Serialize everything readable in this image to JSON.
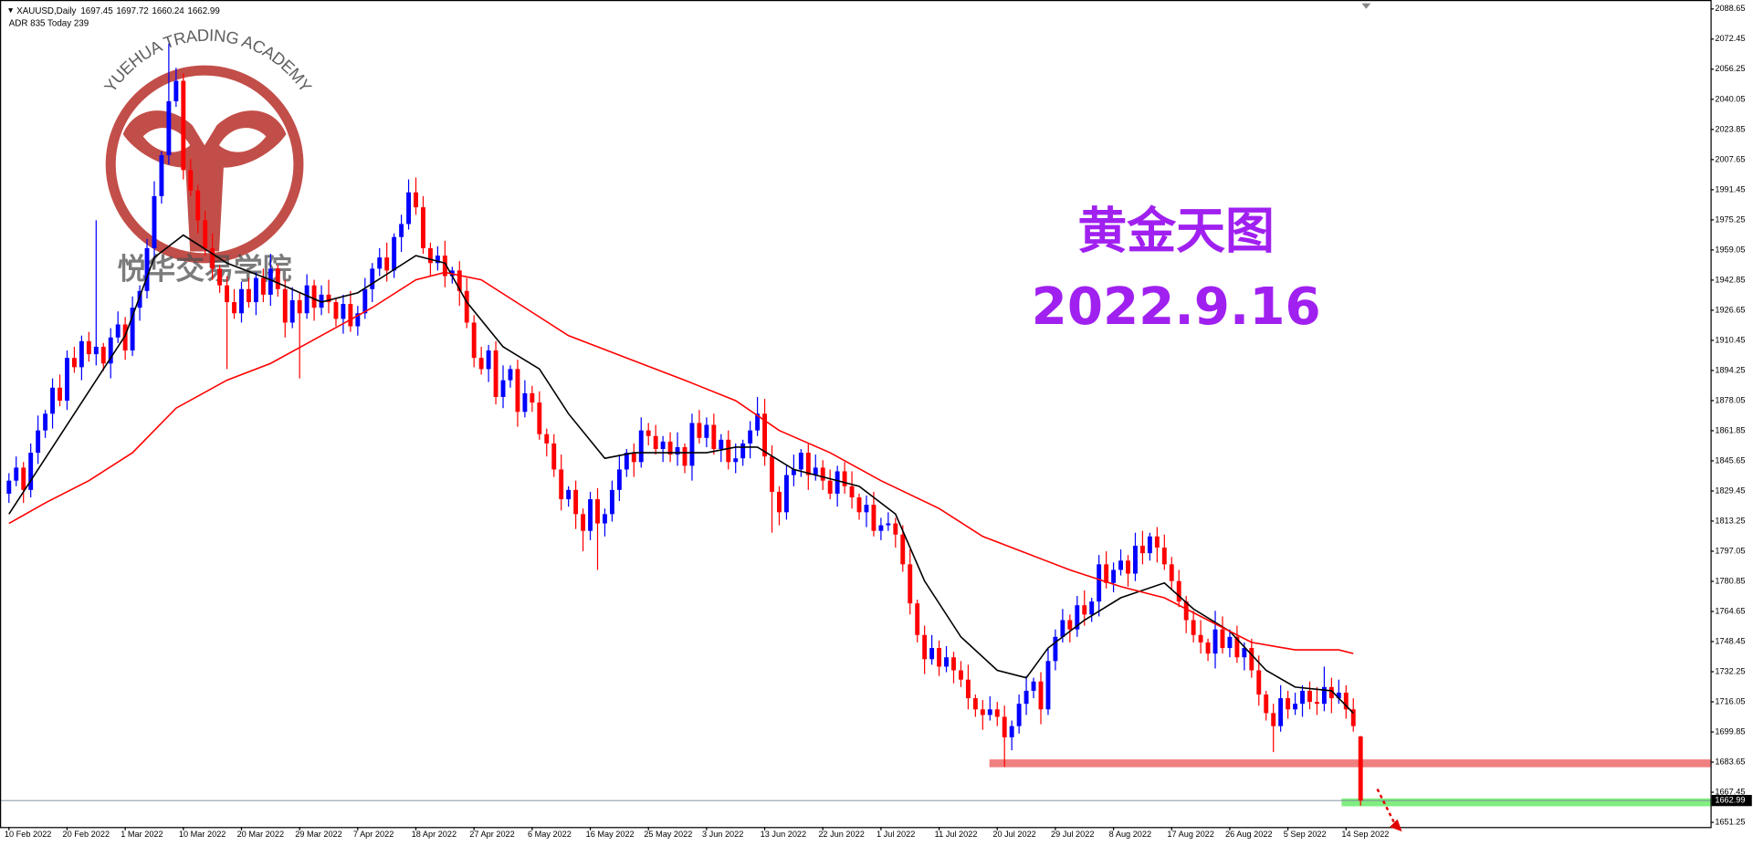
{
  "chart_data": {
    "type": "candlestick",
    "symbol": "XAUUSD,Daily",
    "indicator_text": "ADR 835  Today 239",
    "title": "黄金天图",
    "subtitle": "2022.9.16",
    "watermark": {
      "name": "YUEHUA TRADING ACADEMY",
      "name_cn": "悦华交易学院"
    },
    "up_color": "#0000ff",
    "down_color": "#ff0000",
    "candles": [
      [
        1828,
        1839,
        1823,
        1835
      ],
      [
        1835,
        1848,
        1832,
        1842
      ],
      [
        1842,
        1845,
        1823,
        1830
      ],
      [
        1830,
        1855,
        1826,
        1850
      ],
      [
        1850,
        1870,
        1844,
        1862
      ],
      [
        1862,
        1873,
        1858,
        1871
      ],
      [
        1871,
        1890,
        1863,
        1885
      ],
      [
        1885,
        1892,
        1875,
        1878
      ],
      [
        1878,
        1905,
        1873,
        1901
      ],
      [
        1901,
        1907,
        1893,
        1896
      ],
      [
        1896,
        1913,
        1889,
        1910
      ],
      [
        1910,
        1915,
        1899,
        1903
      ],
      [
        1903,
        1975,
        1897,
        1907
      ],
      [
        1907,
        1909,
        1894,
        1898
      ],
      [
        1898,
        1917,
        1890,
        1912
      ],
      [
        1912,
        1926,
        1909,
        1919
      ],
      [
        1919,
        1923,
        1900,
        1905
      ],
      [
        1905,
        1934,
        1902,
        1928
      ],
      [
        1928,
        1940,
        1921,
        1937
      ],
      [
        1937,
        1965,
        1933,
        1960
      ],
      [
        1960,
        1996,
        1954,
        1988
      ],
      [
        1988,
        2012,
        1984,
        2010
      ],
      [
        2010,
        2070,
        2005,
        2039
      ],
      [
        2039,
        2057,
        2036,
        2050
      ],
      [
        2050,
        2054,
        1997,
        2002
      ],
      [
        2002,
        2008,
        1988,
        1991
      ],
      [
        1991,
        1994,
        1968,
        1975
      ],
      [
        1975,
        1980,
        1956,
        1960
      ],
      [
        1960,
        1968,
        1943,
        1949
      ],
      [
        1949,
        1951,
        1936,
        1940
      ],
      [
        1940,
        1945,
        1895,
        1931
      ],
      [
        1931,
        1938,
        1922,
        1925
      ],
      [
        1925,
        1942,
        1920,
        1938
      ],
      [
        1938,
        1944,
        1928,
        1931
      ],
      [
        1931,
        1947,
        1924,
        1944
      ],
      [
        1944,
        1949,
        1931,
        1935
      ],
      [
        1935,
        1957,
        1929,
        1949
      ],
      [
        1949,
        1951,
        1934,
        1938
      ],
      [
        1938,
        1943,
        1912,
        1920
      ],
      [
        1920,
        1939,
        1917,
        1932
      ],
      [
        1932,
        1936,
        1890,
        1925
      ],
      [
        1925,
        1946,
        1922,
        1940
      ],
      [
        1940,
        1943,
        1921,
        1928
      ],
      [
        1928,
        1940,
        1924,
        1935
      ],
      [
        1935,
        1943,
        1925,
        1931
      ],
      [
        1931,
        1933,
        1918,
        1922
      ],
      [
        1922,
        1935,
        1914,
        1930
      ],
      [
        1930,
        1937,
        1915,
        1918
      ],
      [
        1918,
        1929,
        1913,
        1925
      ],
      [
        1925,
        1944,
        1922,
        1938
      ],
      [
        1938,
        1952,
        1931,
        1949
      ],
      [
        1949,
        1960,
        1945,
        1955
      ],
      [
        1955,
        1963,
        1942,
        1948
      ],
      [
        1948,
        1968,
        1944,
        1966
      ],
      [
        1966,
        1978,
        1958,
        1973
      ],
      [
        1973,
        1997,
        1970,
        1990
      ],
      [
        1990,
        1998,
        1978,
        1982
      ],
      [
        1982,
        1988,
        1957,
        1960
      ],
      [
        1960,
        1963,
        1945,
        1952
      ],
      [
        1952,
        1961,
        1948,
        1956
      ],
      [
        1956,
        1964,
        1939,
        1945
      ],
      [
        1945,
        1950,
        1941,
        1948
      ],
      [
        1948,
        1953,
        1929,
        1937
      ],
      [
        1937,
        1944,
        1917,
        1920
      ],
      [
        1920,
        1924,
        1896,
        1901
      ],
      [
        1901,
        1907,
        1892,
        1895
      ],
      [
        1895,
        1908,
        1888,
        1905
      ],
      [
        1905,
        1910,
        1876,
        1880
      ],
      [
        1880,
        1897,
        1874,
        1889
      ],
      [
        1889,
        1897,
        1885,
        1895
      ],
      [
        1895,
        1900,
        1864,
        1872
      ],
      [
        1872,
        1889,
        1869,
        1882
      ],
      [
        1882,
        1886,
        1872,
        1877
      ],
      [
        1877,
        1883,
        1857,
        1860
      ],
      [
        1860,
        1863,
        1848,
        1855
      ],
      [
        1855,
        1860,
        1837,
        1841
      ],
      [
        1841,
        1849,
        1819,
        1825
      ],
      [
        1825,
        1832,
        1821,
        1830
      ],
      [
        1830,
        1835,
        1809,
        1817
      ],
      [
        1817,
        1820,
        1797,
        1808
      ],
      [
        1808,
        1829,
        1803,
        1825
      ],
      [
        1825,
        1831,
        1787,
        1812
      ],
      [
        1812,
        1820,
        1805,
        1817
      ],
      [
        1817,
        1835,
        1813,
        1830
      ],
      [
        1830,
        1849,
        1824,
        1841
      ],
      [
        1841,
        1852,
        1837,
        1850
      ],
      [
        1850,
        1855,
        1837,
        1845
      ],
      [
        1845,
        1869,
        1842,
        1862
      ],
      [
        1862,
        1866,
        1854,
        1859
      ],
      [
        1859,
        1865,
        1849,
        1852
      ],
      [
        1852,
        1859,
        1845,
        1856
      ],
      [
        1856,
        1861,
        1845,
        1849
      ],
      [
        1849,
        1861,
        1843,
        1853
      ],
      [
        1853,
        1855,
        1839,
        1843
      ],
      [
        1843,
        1871,
        1835,
        1866
      ],
      [
        1866,
        1873,
        1855,
        1858
      ],
      [
        1858,
        1869,
        1853,
        1865
      ],
      [
        1865,
        1871,
        1849,
        1852
      ],
      [
        1852,
        1860,
        1845,
        1857
      ],
      [
        1857,
        1862,
        1841,
        1845
      ],
      [
        1845,
        1855,
        1839,
        1847
      ],
      [
        1847,
        1857,
        1843,
        1855
      ],
      [
        1855,
        1867,
        1847,
        1862
      ],
      [
        1862,
        1880,
        1859,
        1871
      ],
      [
        1871,
        1879,
        1843,
        1848
      ],
      [
        1848,
        1854,
        1807,
        1829
      ],
      [
        1829,
        1832,
        1811,
        1818
      ],
      [
        1818,
        1843,
        1814,
        1838
      ],
      [
        1838,
        1849,
        1832,
        1841
      ],
      [
        1841,
        1852,
        1837,
        1850
      ],
      [
        1850,
        1855,
        1830,
        1838
      ],
      [
        1838,
        1849,
        1835,
        1842
      ],
      [
        1842,
        1846,
        1830,
        1835
      ],
      [
        1835,
        1841,
        1825,
        1828
      ],
      [
        1828,
        1843,
        1821,
        1840
      ],
      [
        1840,
        1845,
        1828,
        1832
      ],
      [
        1832,
        1840,
        1820,
        1826
      ],
      [
        1826,
        1828,
        1814,
        1818
      ],
      [
        1818,
        1827,
        1810,
        1822
      ],
      [
        1822,
        1829,
        1805,
        1808
      ],
      [
        1808,
        1815,
        1803,
        1811
      ],
      [
        1811,
        1818,
        1808,
        1812
      ],
      [
        1812,
        1815,
        1799,
        1806
      ],
      [
        1806,
        1811,
        1786,
        1790
      ],
      [
        1790,
        1798,
        1763,
        1769
      ],
      [
        1769,
        1771,
        1748,
        1752
      ],
      [
        1752,
        1757,
        1731,
        1739
      ],
      [
        1739,
        1752,
        1736,
        1745
      ],
      [
        1745,
        1749,
        1730,
        1735
      ],
      [
        1735,
        1746,
        1732,
        1740
      ],
      [
        1740,
        1743,
        1726,
        1733
      ],
      [
        1733,
        1738,
        1724,
        1728
      ],
      [
        1728,
        1736,
        1712,
        1718
      ],
      [
        1718,
        1720,
        1708,
        1712
      ],
      [
        1712,
        1717,
        1701,
        1709
      ],
      [
        1709,
        1719,
        1706,
        1712
      ],
      [
        1712,
        1716,
        1703,
        1708
      ],
      [
        1708,
        1714,
        1681,
        1697
      ],
      [
        1697,
        1706,
        1690,
        1703
      ],
      [
        1703,
        1720,
        1699,
        1715
      ],
      [
        1715,
        1730,
        1709,
        1722
      ],
      [
        1722,
        1729,
        1718,
        1727
      ],
      [
        1727,
        1732,
        1704,
        1712
      ],
      [
        1712,
        1745,
        1709,
        1738
      ],
      [
        1738,
        1755,
        1733,
        1751
      ],
      [
        1751,
        1766,
        1748,
        1760
      ],
      [
        1760,
        1763,
        1748,
        1755
      ],
      [
        1755,
        1773,
        1751,
        1768
      ],
      [
        1768,
        1776,
        1757,
        1763
      ],
      [
        1763,
        1772,
        1759,
        1770
      ],
      [
        1770,
        1795,
        1762,
        1790
      ],
      [
        1790,
        1797,
        1777,
        1780
      ],
      [
        1780,
        1791,
        1775,
        1787
      ],
      [
        1787,
        1798,
        1784,
        1792
      ],
      [
        1792,
        1795,
        1778,
        1785
      ],
      [
        1785,
        1807,
        1781,
        1800
      ],
      [
        1800,
        1808,
        1790,
        1796
      ],
      [
        1796,
        1807,
        1792,
        1805
      ],
      [
        1805,
        1810,
        1791,
        1799
      ],
      [
        1799,
        1806,
        1787,
        1790
      ],
      [
        1790,
        1794,
        1776,
        1781
      ],
      [
        1781,
        1787,
        1767,
        1770
      ],
      [
        1770,
        1773,
        1753,
        1760
      ],
      [
        1760,
        1765,
        1748,
        1752
      ],
      [
        1752,
        1760,
        1742,
        1748
      ],
      [
        1748,
        1750,
        1738,
        1742
      ],
      [
        1742,
        1765,
        1734,
        1755
      ],
      [
        1755,
        1762,
        1742,
        1745
      ],
      [
        1745,
        1755,
        1740,
        1751
      ],
      [
        1751,
        1757,
        1737,
        1740
      ],
      [
        1740,
        1748,
        1733,
        1745
      ],
      [
        1745,
        1750,
        1729,
        1733
      ],
      [
        1733,
        1741,
        1714,
        1720
      ],
      [
        1720,
        1722,
        1706,
        1710
      ],
      [
        1710,
        1715,
        1689,
        1703
      ],
      [
        1703,
        1725,
        1700,
        1718
      ],
      [
        1718,
        1722,
        1707,
        1712
      ],
      [
        1712,
        1721,
        1709,
        1715
      ],
      [
        1715,
        1725,
        1708,
        1722
      ],
      [
        1722,
        1727,
        1712,
        1716
      ],
      [
        1716,
        1724,
        1709,
        1715
      ],
      [
        1715,
        1735,
        1711,
        1724
      ],
      [
        1724,
        1729,
        1710,
        1718
      ],
      [
        1718,
        1728,
        1715,
        1721
      ],
      [
        1721,
        1725,
        1707,
        1712
      ],
      [
        1712,
        1718,
        1700,
        1703
      ],
      [
        1697.45,
        1697.72,
        1660.24,
        1662.99
      ]
    ],
    "moving_averages": [
      {
        "color": "#000000",
        "x": [
          0,
          5,
          11,
          16,
          20,
          24,
          30,
          36,
          43,
          48,
          52,
          56,
          60,
          63,
          68,
          73,
          77,
          82,
          86,
          91,
          96,
          100,
          103,
          108,
          113,
          117,
          122,
          126,
          131,
          136,
          140,
          143,
          148,
          153,
          159,
          163,
          168,
          173,
          177,
          182,
          185
        ],
        "values": [
          1817,
          1847,
          1883,
          1913,
          1955,
          1967,
          1952,
          1943,
          1931,
          1936,
          1946,
          1956,
          1952,
          1931,
          1907,
          1895,
          1871,
          1847,
          1850,
          1850,
          1850,
          1853,
          1853,
          1841,
          1836,
          1832,
          1817,
          1781,
          1751,
          1733,
          1729,
          1745,
          1760,
          1772,
          1780,
          1766,
          1754,
          1733,
          1724,
          1722,
          1710
        ]
      },
      {
        "color": "#ff0000",
        "x": [
          0,
          5,
          11,
          17,
          23,
          30,
          36,
          43,
          50,
          56,
          60,
          65,
          71,
          77,
          85,
          93,
          100,
          106,
          113,
          120,
          128,
          134,
          140,
          146,
          153,
          159,
          165,
          171,
          177,
          183,
          185
        ],
        "values": [
          1812,
          1823,
          1835,
          1850,
          1874,
          1889,
          1898,
          1913,
          1928,
          1943,
          1947,
          1943,
          1928,
          1913,
          1901,
          1889,
          1878,
          1862,
          1850,
          1835,
          1820,
          1805,
          1796,
          1787,
          1778,
          1772,
          1760,
          1748,
          1744,
          1744,
          1742
        ]
      }
    ],
    "levels": [
      {
        "value": 1683,
        "color": "#f08080"
      },
      {
        "value": 1662,
        "color": "#80ee80"
      }
    ],
    "ylim": [
      1648.75,
      2093.46
    ],
    "yticks": [
      2088.65,
      2072.45,
      2056.25,
      2040.05,
      2023.85,
      2007.65,
      1991.45,
      1975.25,
      1959.05,
      1942.85,
      1926.65,
      1910.45,
      1894.25,
      1878.05,
      1861.85,
      1845.65,
      1829.45,
      1813.25,
      1797.05,
      1780.85,
      1764.65,
      1748.45,
      1732.25,
      1716.05,
      1699.85,
      1683.65,
      1667.45,
      1651.25
    ],
    "xticks": [
      {
        "value": 0,
        "label": "10 Feb 2022"
      },
      {
        "value": 8,
        "label": "20 Feb 2022"
      },
      {
        "value": 16,
        "label": "1 Mar 2022"
      },
      {
        "value": 24,
        "label": "10 Mar 2022"
      },
      {
        "value": 32,
        "label": "20 Mar 2022"
      },
      {
        "value": 40,
        "label": "29 Mar 2022"
      },
      {
        "value": 48,
        "label": "7 Apr 2022"
      },
      {
        "value": 56,
        "label": "18 Apr 2022"
      },
      {
        "value": 64,
        "label": "27 Apr 2022"
      },
      {
        "value": 72,
        "label": "6 May 2022"
      },
      {
        "value": 80,
        "label": "16 May 2022"
      },
      {
        "value": 88,
        "label": "25 May 2022"
      },
      {
        "value": 96,
        "label": "3 Jun 2022"
      },
      {
        "value": 104,
        "label": "13 Jun 2022"
      },
      {
        "value": 112,
        "label": "22 Jun 2022"
      },
      {
        "value": 120,
        "label": "1 Jul 2022"
      },
      {
        "value": 128,
        "label": "11 Jul 2022"
      },
      {
        "value": 136,
        "label": "20 Jul 2022"
      },
      {
        "value": 144,
        "label": "29 Jul 2022"
      },
      {
        "value": 152,
        "label": "8 Aug 2022"
      },
      {
        "value": 160,
        "label": "17 Aug 2022"
      },
      {
        "value": 168,
        "label": "26 Aug 2022"
      },
      {
        "value": 176,
        "label": "5 Sep 2022"
      },
      {
        "value": 184,
        "label": "14 Sep 2022"
      }
    ]
  }
}
